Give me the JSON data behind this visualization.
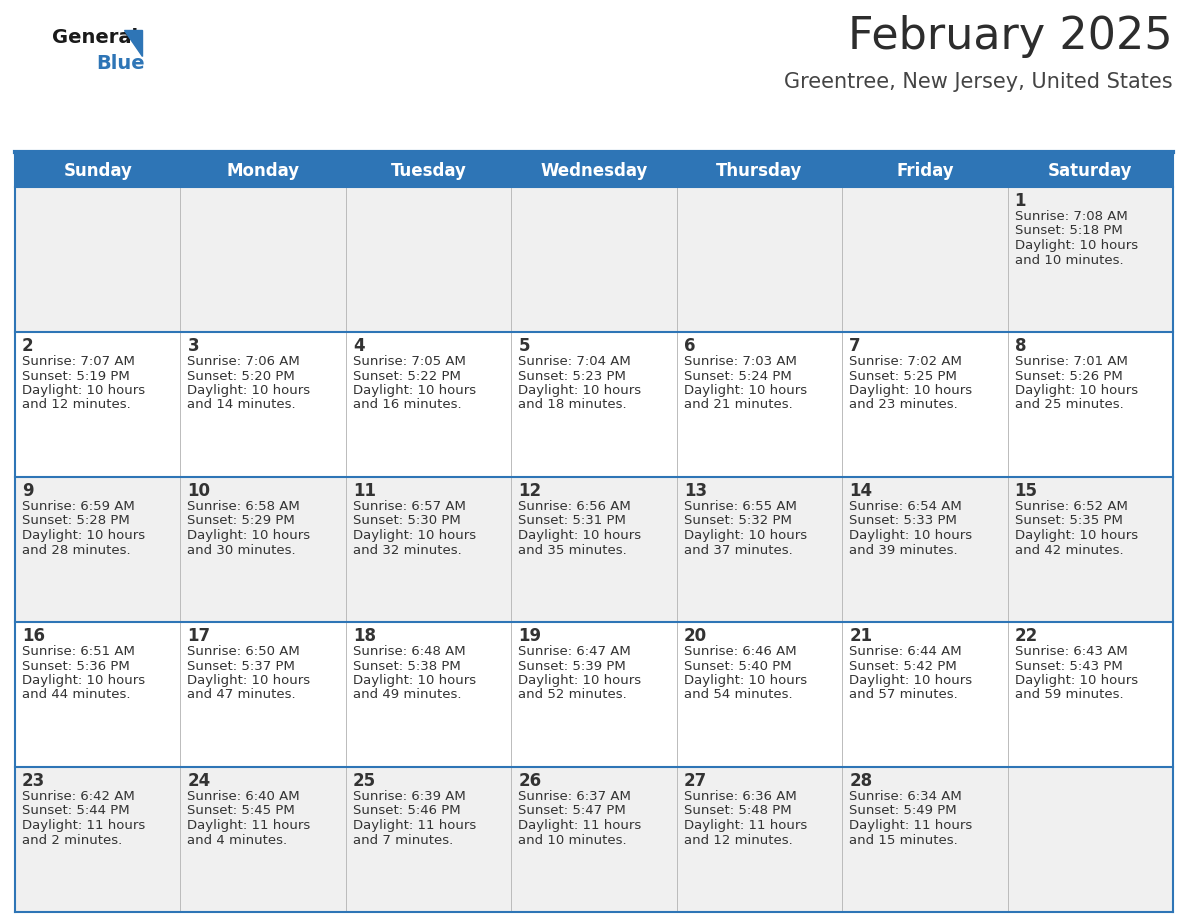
{
  "title": "February 2025",
  "subtitle": "Greentree, New Jersey, United States",
  "header_bg": "#2e75b6",
  "header_text_color": "#ffffff",
  "cell_bg_odd": "#f0f0f0",
  "cell_bg_even": "#ffffff",
  "border_color": "#2e75b6",
  "grid_color": "#2e75b6",
  "day_names": [
    "Sunday",
    "Monday",
    "Tuesday",
    "Wednesday",
    "Thursday",
    "Friday",
    "Saturday"
  ],
  "days": [
    {
      "day": 1,
      "col": 6,
      "row": 0,
      "sunrise": "7:08 AM",
      "sunset": "5:18 PM",
      "daylight": "10 hours and 10 minutes."
    },
    {
      "day": 2,
      "col": 0,
      "row": 1,
      "sunrise": "7:07 AM",
      "sunset": "5:19 PM",
      "daylight": "10 hours and 12 minutes."
    },
    {
      "day": 3,
      "col": 1,
      "row": 1,
      "sunrise": "7:06 AM",
      "sunset": "5:20 PM",
      "daylight": "10 hours and 14 minutes."
    },
    {
      "day": 4,
      "col": 2,
      "row": 1,
      "sunrise": "7:05 AM",
      "sunset": "5:22 PM",
      "daylight": "10 hours and 16 minutes."
    },
    {
      "day": 5,
      "col": 3,
      "row": 1,
      "sunrise": "7:04 AM",
      "sunset": "5:23 PM",
      "daylight": "10 hours and 18 minutes."
    },
    {
      "day": 6,
      "col": 4,
      "row": 1,
      "sunrise": "7:03 AM",
      "sunset": "5:24 PM",
      "daylight": "10 hours and 21 minutes."
    },
    {
      "day": 7,
      "col": 5,
      "row": 1,
      "sunrise": "7:02 AM",
      "sunset": "5:25 PM",
      "daylight": "10 hours and 23 minutes."
    },
    {
      "day": 8,
      "col": 6,
      "row": 1,
      "sunrise": "7:01 AM",
      "sunset": "5:26 PM",
      "daylight": "10 hours and 25 minutes."
    },
    {
      "day": 9,
      "col": 0,
      "row": 2,
      "sunrise": "6:59 AM",
      "sunset": "5:28 PM",
      "daylight": "10 hours and 28 minutes."
    },
    {
      "day": 10,
      "col": 1,
      "row": 2,
      "sunrise": "6:58 AM",
      "sunset": "5:29 PM",
      "daylight": "10 hours and 30 minutes."
    },
    {
      "day": 11,
      "col": 2,
      "row": 2,
      "sunrise": "6:57 AM",
      "sunset": "5:30 PM",
      "daylight": "10 hours and 32 minutes."
    },
    {
      "day": 12,
      "col": 3,
      "row": 2,
      "sunrise": "6:56 AM",
      "sunset": "5:31 PM",
      "daylight": "10 hours and 35 minutes."
    },
    {
      "day": 13,
      "col": 4,
      "row": 2,
      "sunrise": "6:55 AM",
      "sunset": "5:32 PM",
      "daylight": "10 hours and 37 minutes."
    },
    {
      "day": 14,
      "col": 5,
      "row": 2,
      "sunrise": "6:54 AM",
      "sunset": "5:33 PM",
      "daylight": "10 hours and 39 minutes."
    },
    {
      "day": 15,
      "col": 6,
      "row": 2,
      "sunrise": "6:52 AM",
      "sunset": "5:35 PM",
      "daylight": "10 hours and 42 minutes."
    },
    {
      "day": 16,
      "col": 0,
      "row": 3,
      "sunrise": "6:51 AM",
      "sunset": "5:36 PM",
      "daylight": "10 hours and 44 minutes."
    },
    {
      "day": 17,
      "col": 1,
      "row": 3,
      "sunrise": "6:50 AM",
      "sunset": "5:37 PM",
      "daylight": "10 hours and 47 minutes."
    },
    {
      "day": 18,
      "col": 2,
      "row": 3,
      "sunrise": "6:48 AM",
      "sunset": "5:38 PM",
      "daylight": "10 hours and 49 minutes."
    },
    {
      "day": 19,
      "col": 3,
      "row": 3,
      "sunrise": "6:47 AM",
      "sunset": "5:39 PM",
      "daylight": "10 hours and 52 minutes."
    },
    {
      "day": 20,
      "col": 4,
      "row": 3,
      "sunrise": "6:46 AM",
      "sunset": "5:40 PM",
      "daylight": "10 hours and 54 minutes."
    },
    {
      "day": 21,
      "col": 5,
      "row": 3,
      "sunrise": "6:44 AM",
      "sunset": "5:42 PM",
      "daylight": "10 hours and 57 minutes."
    },
    {
      "day": 22,
      "col": 6,
      "row": 3,
      "sunrise": "6:43 AM",
      "sunset": "5:43 PM",
      "daylight": "10 hours and 59 minutes."
    },
    {
      "day": 23,
      "col": 0,
      "row": 4,
      "sunrise": "6:42 AM",
      "sunset": "5:44 PM",
      "daylight": "11 hours and 2 minutes."
    },
    {
      "day": 24,
      "col": 1,
      "row": 4,
      "sunrise": "6:40 AM",
      "sunset": "5:45 PM",
      "daylight": "11 hours and 4 minutes."
    },
    {
      "day": 25,
      "col": 2,
      "row": 4,
      "sunrise": "6:39 AM",
      "sunset": "5:46 PM",
      "daylight": "11 hours and 7 minutes."
    },
    {
      "day": 26,
      "col": 3,
      "row": 4,
      "sunrise": "6:37 AM",
      "sunset": "5:47 PM",
      "daylight": "11 hours and 10 minutes."
    },
    {
      "day": 27,
      "col": 4,
      "row": 4,
      "sunrise": "6:36 AM",
      "sunset": "5:48 PM",
      "daylight": "11 hours and 12 minutes."
    },
    {
      "day": 28,
      "col": 5,
      "row": 4,
      "sunrise": "6:34 AM",
      "sunset": "5:49 PM",
      "daylight": "11 hours and 15 minutes."
    }
  ],
  "num_rows": 5,
  "title_fontsize": 32,
  "subtitle_fontsize": 15,
  "day_name_fontsize": 12,
  "day_num_fontsize": 12,
  "info_fontsize": 9.5,
  "logo_general_fontsize": 14,
  "logo_blue_fontsize": 14
}
